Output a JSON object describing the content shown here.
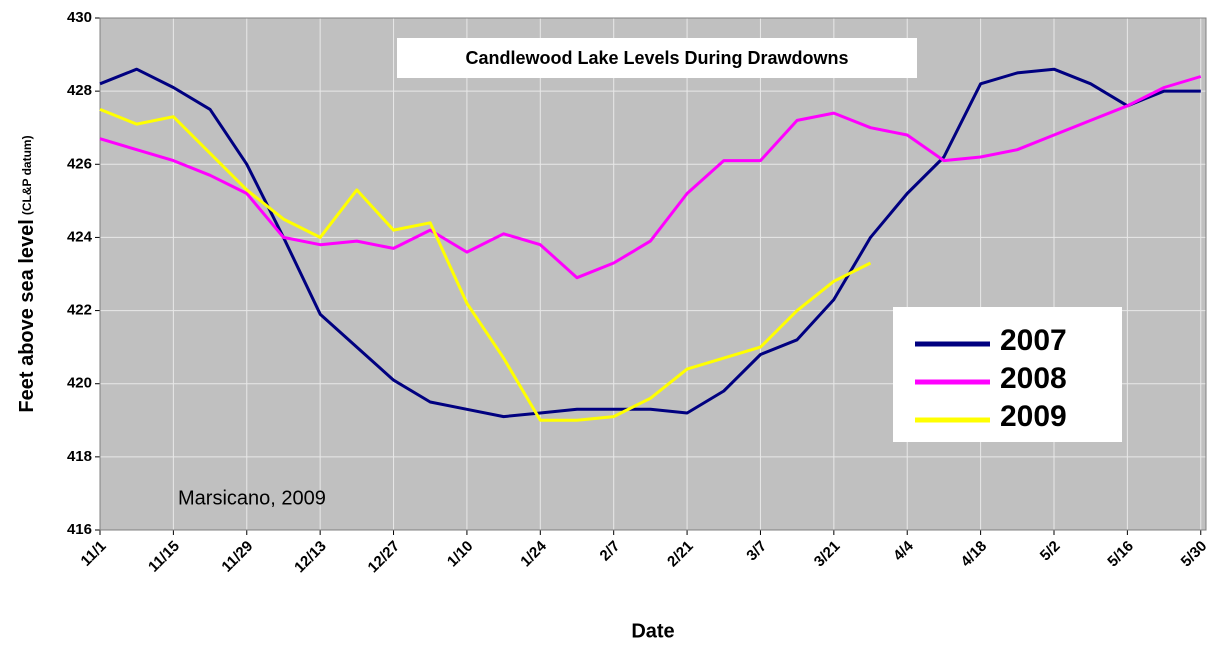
{
  "chart_data": {
    "type": "line",
    "title": "Candlewood Lake Levels During Drawdowns",
    "xlabel": "Date",
    "ylabel": "Feet above sea level",
    "ylabel_note": "(CL&P datum)",
    "annotation": "Marsicano, 2009",
    "x": [
      "11/1",
      "11/8",
      "11/15",
      "11/22",
      "11/29",
      "12/6",
      "12/13",
      "12/20",
      "12/27",
      "1/3",
      "1/10",
      "1/17",
      "1/24",
      "1/31",
      "2/7",
      "2/14",
      "2/21",
      "2/28",
      "3/7",
      "3/14",
      "3/21",
      "3/28",
      "4/4",
      "4/11",
      "4/18",
      "4/25",
      "5/2",
      "5/9",
      "5/16",
      "5/23",
      "5/30"
    ],
    "xlim": [
      "11/1",
      "5/31"
    ],
    "xticks": [
      "11/1",
      "11/15",
      "11/29",
      "12/13",
      "12/27",
      "1/10",
      "1/24",
      "2/7",
      "2/21",
      "3/7",
      "3/21",
      "4/4",
      "4/18",
      "5/2",
      "5/16",
      "5/30"
    ],
    "ylim": [
      416,
      430
    ],
    "yticks": [
      416,
      418,
      420,
      422,
      424,
      426,
      428,
      430
    ],
    "grid": true,
    "legend": "right",
    "series": [
      {
        "name": "2007",
        "color": "#000080",
        "values": [
          428.2,
          428.6,
          428.1,
          427.5,
          426.0,
          424.0,
          421.9,
          421.0,
          420.1,
          419.5,
          419.3,
          419.1,
          419.2,
          419.3,
          419.3,
          419.3,
          419.2,
          419.8,
          420.8,
          421.2,
          422.3,
          424.0,
          425.2,
          426.2,
          428.2,
          428.5,
          428.6,
          428.2,
          427.6,
          428.0,
          428.0
        ]
      },
      {
        "name": "2008",
        "color": "#ff00ff",
        "values": [
          426.7,
          426.4,
          426.1,
          425.7,
          425.2,
          424.0,
          423.8,
          423.9,
          423.7,
          424.2,
          423.6,
          424.1,
          423.8,
          422.9,
          423.3,
          423.9,
          425.2,
          426.1,
          426.1,
          427.2,
          427.4,
          427.0,
          426.8,
          426.1,
          426.2,
          426.4,
          426.8,
          427.2,
          427.6,
          428.1,
          428.4
        ]
      },
      {
        "name": "2009",
        "color": "#ffff00",
        "values": [
          427.5,
          427.1,
          427.3,
          426.3,
          425.3,
          424.5,
          424.0,
          425.3,
          424.2,
          424.4,
          422.2,
          420.7,
          419.0,
          419.0,
          419.1,
          419.6,
          420.4,
          420.7,
          421.0,
          422.0,
          422.8,
          423.3,
          null,
          null,
          null,
          null,
          null,
          null,
          null,
          null,
          null
        ]
      }
    ]
  }
}
